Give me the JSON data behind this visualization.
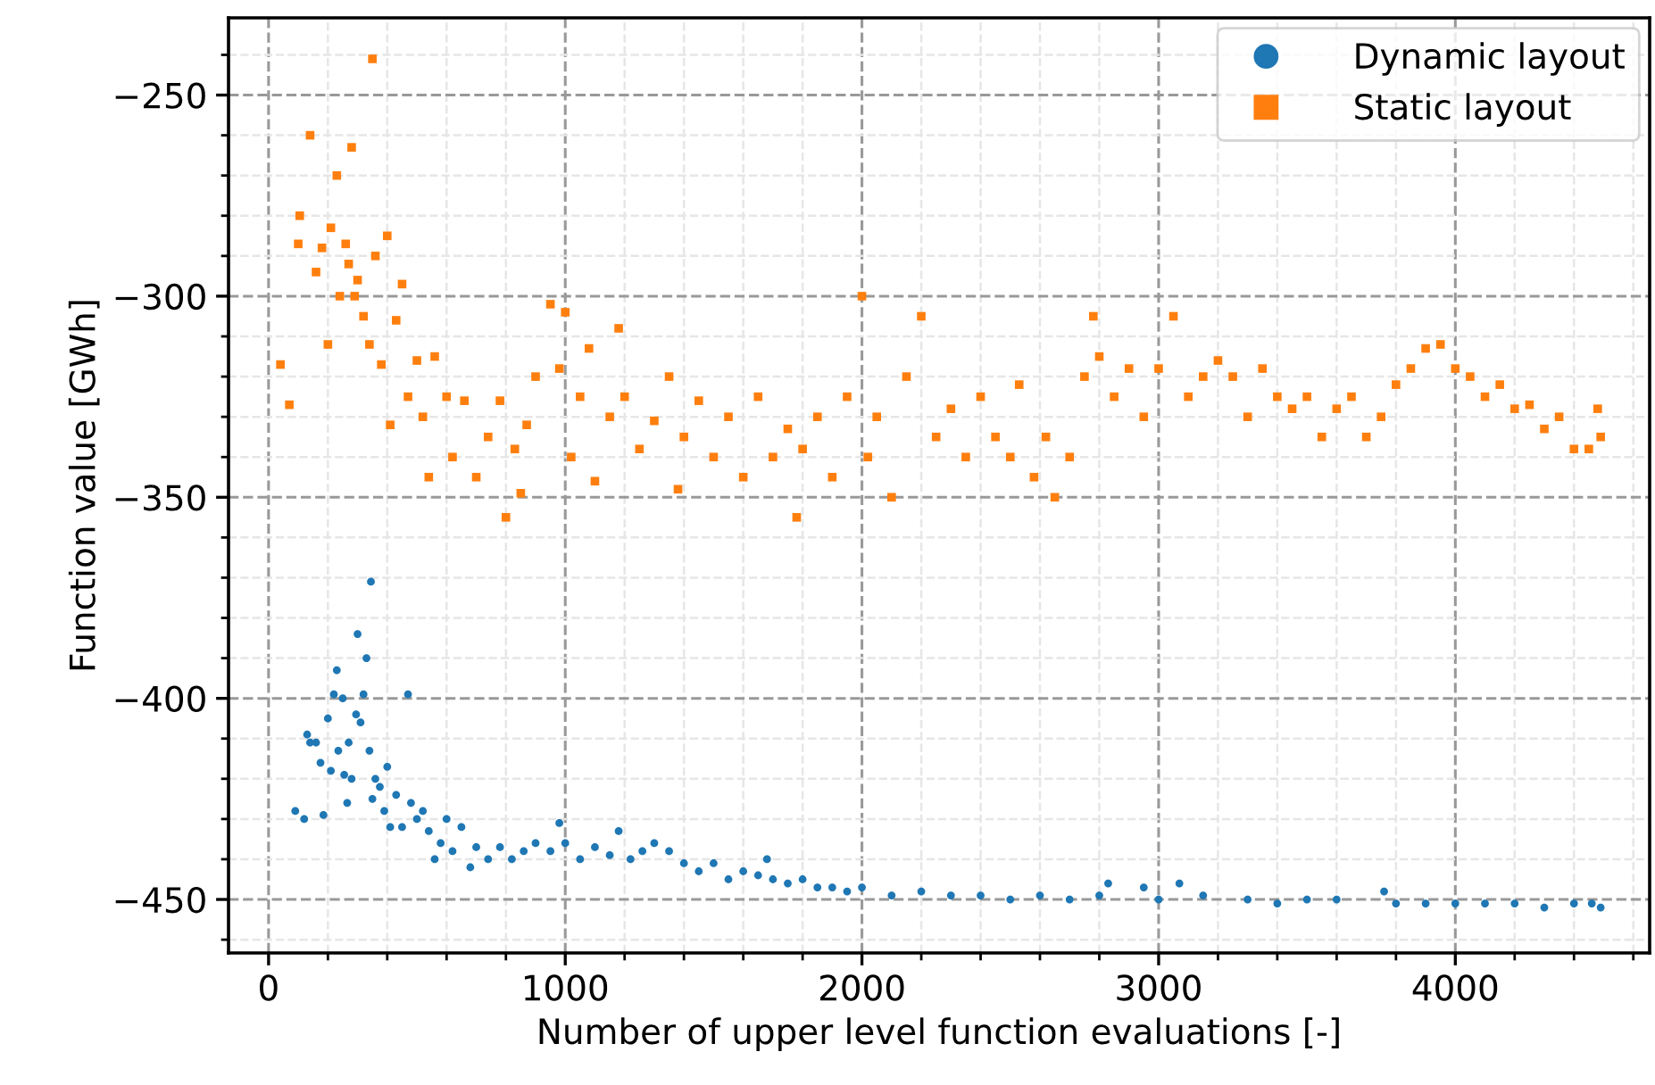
{
  "chart_data": {
    "type": "scatter",
    "xlabel": "Number of upper level function evaluations [-]",
    "ylabel": "Function value [GWh]",
    "xlim": [
      -135,
      4655
    ],
    "ylim": [
      -463.3,
      -230.8
    ],
    "xticks": [
      0,
      1000,
      2000,
      3000,
      4000
    ],
    "yticks": [
      -450,
      -400,
      -350,
      -300,
      -250
    ],
    "grid": true,
    "legend": "top right",
    "series": [
      {
        "name": "Dynamic layout",
        "color": "#1f77b4",
        "marker": "circle",
        "x": [
          90,
          120,
          130,
          140,
          160,
          175,
          185,
          200,
          210,
          220,
          230,
          235,
          250,
          255,
          265,
          270,
          280,
          295,
          300,
          310,
          320,
          330,
          340,
          345,
          350,
          360,
          375,
          390,
          400,
          410,
          430,
          450,
          470,
          480,
          500,
          520,
          540,
          560,
          580,
          600,
          620,
          650,
          680,
          700,
          740,
          780,
          820,
          860,
          900,
          950,
          980,
          1000,
          1050,
          1100,
          1150,
          1180,
          1220,
          1260,
          1300,
          1350,
          1400,
          1450,
          1500,
          1550,
          1600,
          1650,
          1680,
          1700,
          1750,
          1800,
          1850,
          1900,
          1950,
          2000,
          2100,
          2200,
          2300,
          2400,
          2500,
          2600,
          2700,
          2800,
          2830,
          2950,
          3000,
          3070,
          3150,
          3300,
          3400,
          3500,
          3600,
          3760,
          3800,
          3900,
          4000,
          4100,
          4200,
          4300,
          4400,
          4460,
          4490
        ],
        "values": [
          -428,
          -430,
          -409,
          -411,
          -411,
          -416,
          -429,
          -405,
          -418,
          -399,
          -393,
          -413,
          -400,
          -419,
          -426,
          -411,
          -420,
          -404,
          -384,
          -406,
          -399,
          -390,
          -413,
          -371,
          -425,
          -420,
          -422,
          -428,
          -417,
          -432,
          -424,
          -432,
          -399,
          -426,
          -430,
          -428,
          -433,
          -440,
          -436,
          -430,
          -438,
          -432,
          -442,
          -437,
          -440,
          -437,
          -440,
          -438,
          -436,
          -438,
          -431,
          -436,
          -440,
          -437,
          -439,
          -433,
          -440,
          -438,
          -436,
          -438,
          -441,
          -443,
          -441,
          -445,
          -443,
          -444,
          -440,
          -445,
          -446,
          -445,
          -447,
          -447,
          -448,
          -447,
          -449,
          -448,
          -449,
          -449,
          -450,
          -449,
          -450,
          -449,
          -446,
          -447,
          -450,
          -446,
          -449,
          -450,
          -451,
          -450,
          -450,
          -448,
          -451,
          -451,
          -451,
          -451,
          -451,
          -452,
          -451,
          -451,
          -452
        ]
      },
      {
        "name": "Static layout",
        "color": "#ff7f0e",
        "marker": "square",
        "x": [
          40,
          70,
          100,
          105,
          140,
          160,
          180,
          200,
          210,
          230,
          240,
          260,
          270,
          280,
          290,
          300,
          320,
          340,
          350,
          360,
          380,
          400,
          410,
          430,
          450,
          470,
          500,
          520,
          540,
          560,
          600,
          620,
          660,
          700,
          740,
          780,
          800,
          830,
          850,
          870,
          900,
          950,
          980,
          1000,
          1020,
          1050,
          1080,
          1100,
          1150,
          1180,
          1200,
          1250,
          1300,
          1350,
          1380,
          1400,
          1450,
          1500,
          1550,
          1600,
          1650,
          1700,
          1750,
          1780,
          1800,
          1850,
          1900,
          1950,
          2000,
          2020,
          2050,
          2100,
          2150,
          2200,
          2250,
          2300,
          2350,
          2400,
          2450,
          2500,
          2530,
          2580,
          2620,
          2650,
          2700,
          2750,
          2780,
          2800,
          2850,
          2900,
          2950,
          3000,
          3050,
          3100,
          3150,
          3200,
          3250,
          3300,
          3350,
          3400,
          3450,
          3500,
          3550,
          3600,
          3650,
          3700,
          3750,
          3800,
          3850,
          3900,
          3950,
          4000,
          4050,
          4100,
          4150,
          4200,
          4250,
          4300,
          4350,
          4400,
          4450,
          4480,
          4490
        ],
        "values": [
          -317,
          -327,
          -287,
          -280,
          -260,
          -294,
          -288,
          -312,
          -283,
          -270,
          -300,
          -287,
          -292,
          -263,
          -300,
          -296,
          -305,
          -312,
          -241,
          -290,
          -317,
          -285,
          -332,
          -306,
          -297,
          -325,
          -316,
          -330,
          -345,
          -315,
          -325,
          -340,
          -326,
          -345,
          -335,
          -326,
          -355,
          -338,
          -349,
          -332,
          -320,
          -302,
          -318,
          -304,
          -340,
          -325,
          -313,
          -346,
          -330,
          -308,
          -325,
          -338,
          -331,
          -320,
          -348,
          -335,
          -326,
          -340,
          -330,
          -345,
          -325,
          -340,
          -333,
          -355,
          -338,
          -330,
          -345,
          -325,
          -300,
          -340,
          -330,
          -350,
          -320,
          -305,
          -335,
          -328,
          -340,
          -325,
          -335,
          -340,
          -322,
          -345,
          -335,
          -350,
          -340,
          -320,
          -305,
          -315,
          -325,
          -318,
          -330,
          -318,
          -305,
          -325,
          -320,
          -316,
          -320,
          -330,
          -318,
          -325,
          -328,
          -325,
          -335,
          -328,
          -325,
          -335,
          -330,
          -322,
          -318,
          -313,
          -312,
          -318,
          -320,
          -325,
          -322,
          -328,
          -327,
          -333,
          -330,
          -338,
          -338,
          -328,
          -335
        ]
      }
    ]
  }
}
